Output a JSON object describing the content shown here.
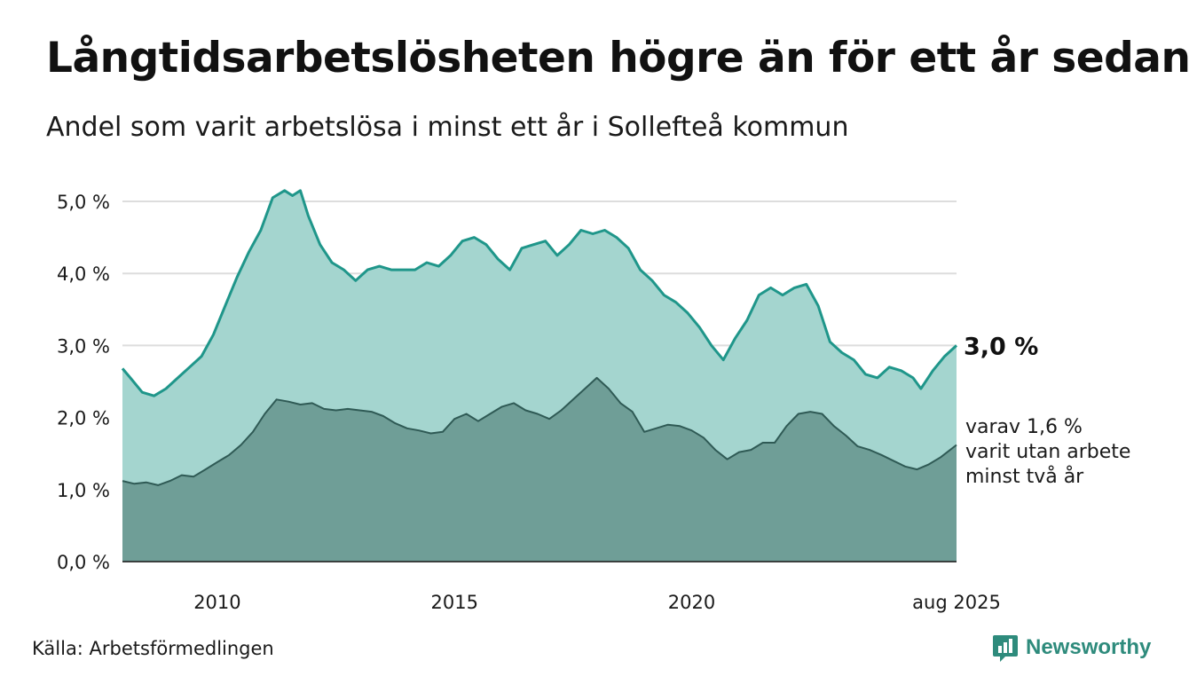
{
  "title": "Långtidsarbetslösheten högre än för ett år sedan",
  "subtitle": "Andel som varit arbetslösa i minst ett år i Sollefteå kommun",
  "source": "Källa: Arbetsförmedlingen",
  "brand": "Newsworthy",
  "colors": {
    "upper_fill": "#a4d5cf",
    "upper_line": "#1f968a",
    "lower_fill": "#6f9e97",
    "lower_line": "#2f5a55",
    "grid": "#dddddd"
  },
  "chart_data": {
    "type": "area",
    "x_range": [
      "2008-01",
      "2025-08"
    ],
    "ylim": [
      0,
      5.0
    ],
    "y_ticks": [
      {
        "value": 0,
        "label": "0,0 %"
      },
      {
        "value": 1,
        "label": "1,0 %"
      },
      {
        "value": 2,
        "label": "2,0 %"
      },
      {
        "value": 3,
        "label": "3,0 %"
      },
      {
        "value": 4,
        "label": "4,0 %"
      },
      {
        "value": 5,
        "label": "5,0 %"
      }
    ],
    "x_ticks": [
      {
        "date": "2010-01",
        "label": "2010"
      },
      {
        "date": "2015-01",
        "label": "2015"
      },
      {
        "date": "2020-01",
        "label": "2020"
      },
      {
        "date": "2025-08",
        "label": "aug 2025"
      }
    ],
    "annotations": {
      "last_value": "3,0 %",
      "lower_note": [
        "varav 1,6 %",
        "varit utan arbete",
        "minst två år"
      ]
    },
    "series": [
      {
        "points": [
          [
            "2008-01",
            2.68
          ],
          [
            "2008-03",
            2.55
          ],
          [
            "2008-06",
            2.35
          ],
          [
            "2008-09",
            2.3
          ],
          [
            "2008-12",
            2.4
          ],
          [
            "2009-03",
            2.55
          ],
          [
            "2009-06",
            2.7
          ],
          [
            "2009-09",
            2.85
          ],
          [
            "2009-12",
            3.15
          ],
          [
            "2010-03",
            3.55
          ],
          [
            "2010-06",
            3.95
          ],
          [
            "2010-09",
            4.3
          ],
          [
            "2010-12",
            4.6
          ],
          [
            "2011-03",
            5.05
          ],
          [
            "2011-06",
            5.15
          ],
          [
            "2011-08",
            5.08
          ],
          [
            "2011-10",
            5.15
          ],
          [
            "2011-12",
            4.8
          ],
          [
            "2012-03",
            4.4
          ],
          [
            "2012-06",
            4.15
          ],
          [
            "2012-09",
            4.05
          ],
          [
            "2012-12",
            3.9
          ],
          [
            "2013-03",
            4.05
          ],
          [
            "2013-06",
            4.1
          ],
          [
            "2013-09",
            4.05
          ],
          [
            "2013-12",
            4.05
          ],
          [
            "2014-03",
            4.05
          ],
          [
            "2014-06",
            4.15
          ],
          [
            "2014-09",
            4.1
          ],
          [
            "2014-12",
            4.25
          ],
          [
            "2015-03",
            4.45
          ],
          [
            "2015-06",
            4.5
          ],
          [
            "2015-09",
            4.4
          ],
          [
            "2015-12",
            4.2
          ],
          [
            "2016-03",
            4.05
          ],
          [
            "2016-06",
            4.35
          ],
          [
            "2016-09",
            4.4
          ],
          [
            "2016-12",
            4.45
          ],
          [
            "2017-03",
            4.25
          ],
          [
            "2017-06",
            4.4
          ],
          [
            "2017-09",
            4.6
          ],
          [
            "2017-12",
            4.55
          ],
          [
            "2018-03",
            4.6
          ],
          [
            "2018-06",
            4.5
          ],
          [
            "2018-09",
            4.35
          ],
          [
            "2018-12",
            4.05
          ],
          [
            "2019-03",
            3.9
          ],
          [
            "2019-06",
            3.7
          ],
          [
            "2019-09",
            3.6
          ],
          [
            "2019-12",
            3.45
          ],
          [
            "2020-03",
            3.25
          ],
          [
            "2020-06",
            3.0
          ],
          [
            "2020-09",
            2.8
          ],
          [
            "2020-12",
            3.1
          ],
          [
            "2021-03",
            3.35
          ],
          [
            "2021-06",
            3.7
          ],
          [
            "2021-09",
            3.8
          ],
          [
            "2021-12",
            3.7
          ],
          [
            "2022-03",
            3.8
          ],
          [
            "2022-06",
            3.85
          ],
          [
            "2022-09",
            3.55
          ],
          [
            "2022-12",
            3.05
          ],
          [
            "2023-03",
            2.9
          ],
          [
            "2023-06",
            2.8
          ],
          [
            "2023-09",
            2.6
          ],
          [
            "2023-12",
            2.55
          ],
          [
            "2024-03",
            2.7
          ],
          [
            "2024-06",
            2.65
          ],
          [
            "2024-09",
            2.55
          ],
          [
            "2024-11",
            2.4
          ],
          [
            "2025-02",
            2.65
          ],
          [
            "2025-05",
            2.85
          ],
          [
            "2025-08",
            3.0
          ]
        ]
      },
      {
        "points": [
          [
            "2008-01",
            1.12
          ],
          [
            "2008-04",
            1.08
          ],
          [
            "2008-07",
            1.1
          ],
          [
            "2008-10",
            1.06
          ],
          [
            "2009-01",
            1.12
          ],
          [
            "2009-04",
            1.2
          ],
          [
            "2009-07",
            1.18
          ],
          [
            "2009-10",
            1.28
          ],
          [
            "2010-01",
            1.38
          ],
          [
            "2010-04",
            1.48
          ],
          [
            "2010-07",
            1.62
          ],
          [
            "2010-10",
            1.8
          ],
          [
            "2011-01",
            2.05
          ],
          [
            "2011-04",
            2.25
          ],
          [
            "2011-07",
            2.22
          ],
          [
            "2011-10",
            2.18
          ],
          [
            "2012-01",
            2.2
          ],
          [
            "2012-04",
            2.12
          ],
          [
            "2012-07",
            2.1
          ],
          [
            "2012-10",
            2.12
          ],
          [
            "2013-01",
            2.1
          ],
          [
            "2013-04",
            2.08
          ],
          [
            "2013-07",
            2.02
          ],
          [
            "2013-10",
            1.92
          ],
          [
            "2014-01",
            1.85
          ],
          [
            "2014-04",
            1.82
          ],
          [
            "2014-07",
            1.78
          ],
          [
            "2014-10",
            1.8
          ],
          [
            "2015-01",
            1.98
          ],
          [
            "2015-04",
            2.05
          ],
          [
            "2015-07",
            1.95
          ],
          [
            "2015-10",
            2.05
          ],
          [
            "2016-01",
            2.15
          ],
          [
            "2016-04",
            2.2
          ],
          [
            "2016-07",
            2.1
          ],
          [
            "2016-10",
            2.05
          ],
          [
            "2017-01",
            1.98
          ],
          [
            "2017-04",
            2.1
          ],
          [
            "2017-07",
            2.25
          ],
          [
            "2017-10",
            2.4
          ],
          [
            "2018-01",
            2.55
          ],
          [
            "2018-04",
            2.4
          ],
          [
            "2018-07",
            2.2
          ],
          [
            "2018-10",
            2.08
          ],
          [
            "2019-01",
            1.8
          ],
          [
            "2019-04",
            1.85
          ],
          [
            "2019-07",
            1.9
          ],
          [
            "2019-10",
            1.88
          ],
          [
            "2020-01",
            1.82
          ],
          [
            "2020-04",
            1.72
          ],
          [
            "2020-07",
            1.55
          ],
          [
            "2020-10",
            1.42
          ],
          [
            "2021-01",
            1.52
          ],
          [
            "2021-04",
            1.55
          ],
          [
            "2021-07",
            1.65
          ],
          [
            "2021-10",
            1.65
          ],
          [
            "2022-01",
            1.88
          ],
          [
            "2022-04",
            2.05
          ],
          [
            "2022-07",
            2.08
          ],
          [
            "2022-10",
            2.05
          ],
          [
            "2023-01",
            1.88
          ],
          [
            "2023-04",
            1.75
          ],
          [
            "2023-07",
            1.6
          ],
          [
            "2023-10",
            1.55
          ],
          [
            "2024-01",
            1.48
          ],
          [
            "2024-04",
            1.4
          ],
          [
            "2024-07",
            1.32
          ],
          [
            "2024-10",
            1.28
          ],
          [
            "2025-01",
            1.35
          ],
          [
            "2025-04",
            1.45
          ],
          [
            "2025-08",
            1.62
          ]
        ]
      }
    ]
  }
}
